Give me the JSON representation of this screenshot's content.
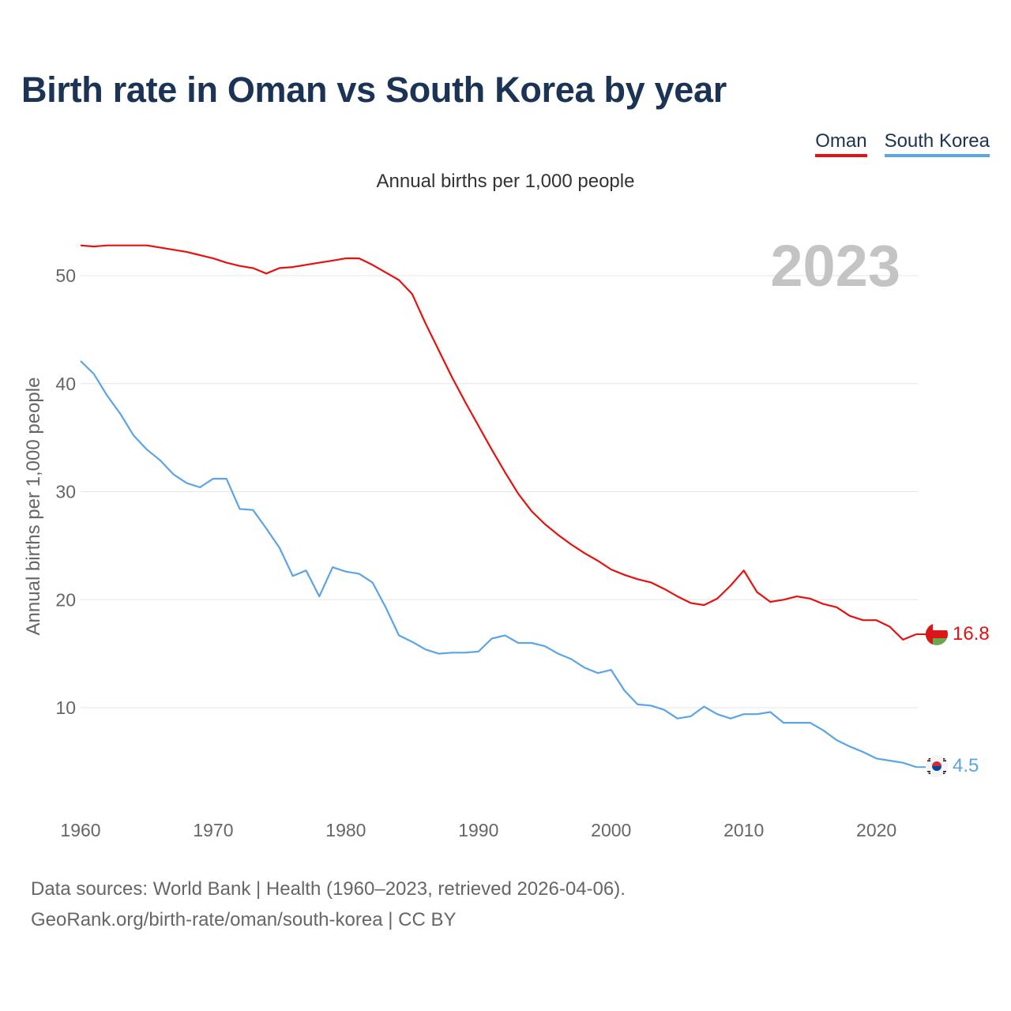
{
  "title": "Birth rate in Oman vs South Korea by year",
  "subtitle": "Annual births per 1,000 people",
  "legend": [
    {
      "name": "Oman",
      "color": "#e8100f"
    },
    {
      "name": "South Korea",
      "color": "#5ba4e6"
    }
  ],
  "year_watermark": "2023",
  "footer": {
    "line1": "Data sources: World Bank | Health (1960–2023, retrieved 2026-04-06).",
    "line2": "GeoRank.org/birth-rate/oman/south-korea | CC BY"
  },
  "flags": {
    "oman": "oman-flag-icon",
    "south_korea": "south-korea-flag-icon"
  },
  "chart_data": {
    "type": "line",
    "title": "Birth rate in Oman vs South Korea by year",
    "ylabel": "Annual births per 1,000 people",
    "xlabel": "",
    "xlim": [
      1960,
      2023
    ],
    "ylim": [
      1.5,
      55
    ],
    "x_ticks": [
      1960,
      1970,
      1980,
      1990,
      2000,
      2010,
      2020
    ],
    "y_ticks": [
      10,
      20,
      30,
      40,
      50
    ],
    "grid": true,
    "x": [
      1960,
      1961,
      1962,
      1963,
      1964,
      1965,
      1966,
      1967,
      1968,
      1969,
      1970,
      1971,
      1972,
      1973,
      1974,
      1975,
      1976,
      1977,
      1978,
      1979,
      1980,
      1981,
      1982,
      1983,
      1984,
      1985,
      1986,
      1987,
      1988,
      1989,
      1990,
      1991,
      1992,
      1993,
      1994,
      1995,
      1996,
      1997,
      1998,
      1999,
      2000,
      2001,
      2002,
      2003,
      2004,
      2005,
      2006,
      2007,
      2008,
      2009,
      2010,
      2011,
      2012,
      2013,
      2014,
      2015,
      2016,
      2017,
      2018,
      2019,
      2020,
      2021,
      2022,
      2023
    ],
    "series": [
      {
        "name": "Oman",
        "color": "#e8100f",
        "last_label": "16.8",
        "values": [
          52.8,
          52.7,
          52.8,
          52.8,
          52.8,
          52.8,
          52.6,
          52.4,
          52.2,
          51.9,
          51.6,
          51.2,
          50.9,
          50.7,
          50.2,
          50.7,
          50.8,
          51.0,
          51.2,
          51.4,
          51.6,
          51.6,
          51.0,
          50.3,
          49.6,
          48.3,
          45.6,
          43.1,
          40.6,
          38.3,
          36.1,
          33.9,
          31.8,
          29.8,
          28.2,
          27.0,
          26.0,
          25.1,
          24.3,
          23.6,
          22.8,
          22.3,
          21.9,
          21.6,
          21.0,
          20.3,
          19.7,
          19.5,
          20.1,
          21.3,
          22.7,
          20.7,
          19.8,
          20.0,
          20.3,
          20.1,
          19.6,
          19.3,
          18.5,
          18.1,
          18.1,
          17.5,
          16.3,
          16.8
        ]
      },
      {
        "name": "South Korea",
        "color": "#5ba4e6",
        "last_label": "4.5",
        "values": [
          42.1,
          40.9,
          38.9,
          37.2,
          35.2,
          33.9,
          32.9,
          31.6,
          30.8,
          30.4,
          31.2,
          31.2,
          28.4,
          28.3,
          26.6,
          24.8,
          22.2,
          22.7,
          20.3,
          23.0,
          22.6,
          22.4,
          21.6,
          19.3,
          16.7,
          16.1,
          15.4,
          15.0,
          15.1,
          15.1,
          15.2,
          16.4,
          16.7,
          16.0,
          16.0,
          15.7,
          15.0,
          14.5,
          13.7,
          13.2,
          13.5,
          11.6,
          10.3,
          10.2,
          9.8,
          9.0,
          9.2,
          10.1,
          9.4,
          9.0,
          9.4,
          9.4,
          9.6,
          8.6,
          8.6,
          8.6,
          7.9,
          7.0,
          6.4,
          5.9,
          5.3,
          5.1,
          4.9,
          4.5
        ]
      }
    ]
  }
}
